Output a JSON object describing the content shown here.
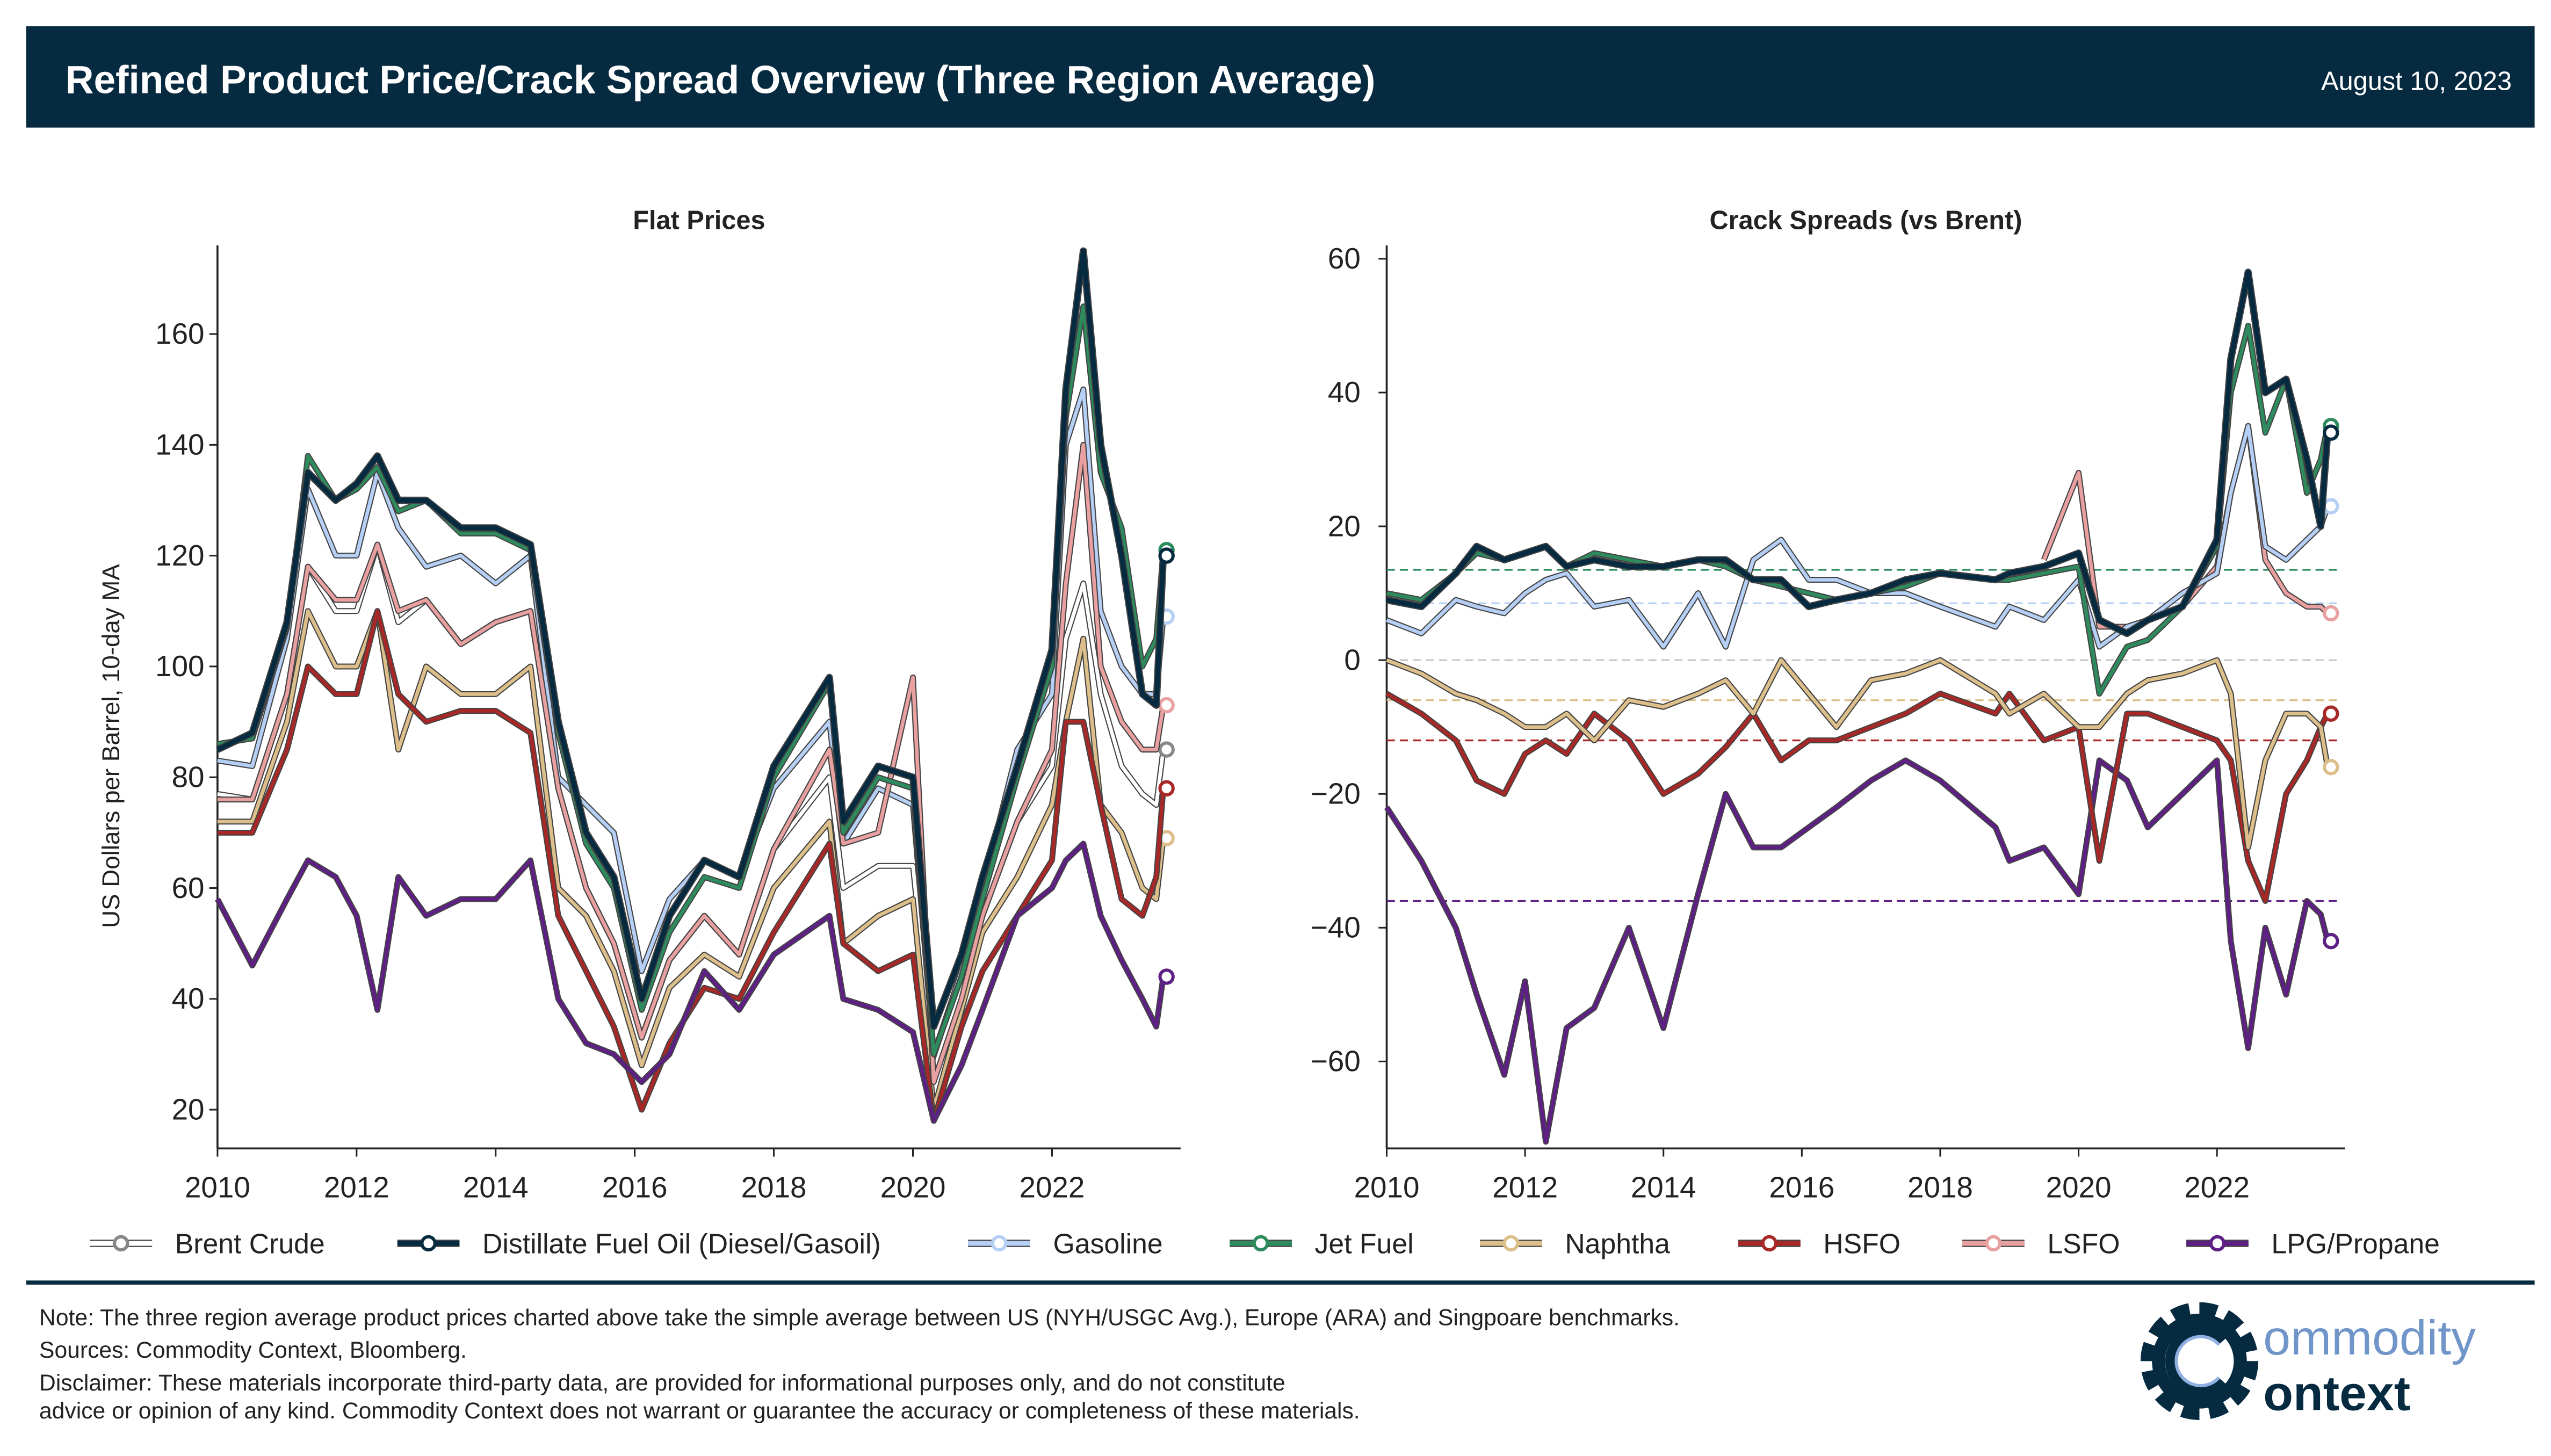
{
  "header": {
    "title": "Refined Product Price/Crack Spread Overview (Three Region Average)",
    "date": "August 10, 2023",
    "background": "#062a3f"
  },
  "legend": [
    {
      "name": "Brent Crude",
      "color": "#ffffff"
    },
    {
      "name": "Distillate Fuel Oil (Diesel/Gasoil)",
      "color": "#062a3f"
    },
    {
      "name": "Gasoline",
      "color": "#b5cff5"
    },
    {
      "name": "Jet Fuel",
      "color": "#2e8b5e"
    },
    {
      "name": "Naphtha",
      "color": "#dcbf8a"
    },
    {
      "name": "HSFO",
      "color": "#a82828"
    },
    {
      "name": "LSFO",
      "color": "#e8a0a0"
    },
    {
      "name": "LPG/Propane",
      "color": "#5e2084"
    }
  ],
  "footer": {
    "note": "Note: The three region average product prices charted above take the simple average between US (NYH/USGC Avg.), Europe (ARA) and Singpoare benchmarks.",
    "sources": "Sources: Commodity Context, Bloomberg.",
    "disclaimer1": "Disclaimer: These materials incorporate third-party data, are provided for informational purposes only, and do not constitute",
    "disclaimer2": "advice or opinion of any kind. Commodity Context does not warrant or guarantee the accuracy or completeness of these materials.",
    "logo_line1": "ommodity",
    "logo_line2": "ontext"
  },
  "chart_data": [
    {
      "type": "line",
      "title": "Flat Prices",
      "xlabel": "",
      "ylabel": "US Dollars per Barrel, 10-day MA",
      "xlim": [
        2010,
        2023.85
      ],
      "ylim": [
        13,
        176
      ],
      "xticks": [
        2010,
        2012,
        2014,
        2016,
        2018,
        2020,
        2022
      ],
      "yticks": [
        20,
        40,
        60,
        80,
        100,
        120,
        140,
        160
      ],
      "grid": false,
      "x": [
        2010.0,
        2010.5,
        2011.0,
        2011.3,
        2011.7,
        2012.0,
        2012.3,
        2012.6,
        2013.0,
        2013.5,
        2014.0,
        2014.5,
        2014.9,
        2015.3,
        2015.7,
        2016.1,
        2016.5,
        2017.0,
        2017.5,
        2018.0,
        2018.8,
        2019.0,
        2019.5,
        2020.0,
        2020.3,
        2020.7,
        2021.0,
        2021.5,
        2022.0,
        2022.2,
        2022.45,
        2022.7,
        2023.0,
        2023.3,
        2023.5,
        2023.6
      ],
      "series": [
        {
          "name": "Brent Crude",
          "values": [
            77,
            76,
            95,
            118,
            110,
            110,
            122,
            108,
            112,
            104,
            108,
            110,
            78,
            60,
            50,
            33,
            47,
            55,
            48,
            67,
            80,
            60,
            64,
            64,
            27,
            42,
            55,
            72,
            82,
            105,
            115,
            95,
            82,
            77,
            75,
            85
          ]
        },
        {
          "name": "Gasoline",
          "values": [
            83,
            82,
            105,
            132,
            120,
            120,
            135,
            125,
            118,
            120,
            115,
            120,
            80,
            75,
            70,
            45,
            58,
            65,
            62,
            78,
            90,
            68,
            78,
            75,
            30,
            45,
            60,
            85,
            95,
            140,
            150,
            110,
            100,
            95,
            95,
            109
          ]
        },
        {
          "name": "Naphtha",
          "values": [
            72,
            72,
            90,
            110,
            100,
            100,
            110,
            85,
            100,
            95,
            95,
            100,
            60,
            55,
            45,
            28,
            42,
            48,
            44,
            60,
            72,
            50,
            55,
            58,
            20,
            38,
            52,
            62,
            75,
            90,
            105,
            75,
            70,
            60,
            58,
            69
          ]
        },
        {
          "name": "HSFO",
          "values": [
            70,
            70,
            85,
            100,
            95,
            95,
            110,
            95,
            90,
            92,
            92,
            88,
            55,
            45,
            35,
            20,
            32,
            42,
            40,
            52,
            68,
            50,
            45,
            48,
            18,
            35,
            45,
            55,
            65,
            90,
            90,
            75,
            58,
            55,
            62,
            78
          ]
        },
        {
          "name": "LSFO",
          "values": [
            76,
            76,
            95,
            118,
            112,
            112,
            122,
            110,
            112,
            104,
            108,
            110,
            78,
            60,
            50,
            33,
            47,
            55,
            48,
            67,
            85,
            68,
            70,
            98,
            25,
            40,
            55,
            72,
            85,
            115,
            140,
            100,
            90,
            85,
            85,
            93
          ]
        },
        {
          "name": "LPG/Propane",
          "values": [
            58,
            46,
            58,
            65,
            62,
            55,
            38,
            62,
            55,
            58,
            58,
            65,
            40,
            32,
            30,
            25,
            30,
            45,
            38,
            48,
            55,
            40,
            38,
            34,
            18,
            28,
            38,
            55,
            60,
            65,
            68,
            55,
            47,
            40,
            35,
            44
          ]
        },
        {
          "name": "Jet Fuel",
          "values": [
            86,
            87,
            107,
            138,
            130,
            132,
            136,
            128,
            130,
            124,
            124,
            121,
            88,
            68,
            60,
            38,
            52,
            62,
            60,
            80,
            97,
            70,
            80,
            78,
            30,
            44,
            58,
            80,
            100,
            145,
            165,
            135,
            125,
            100,
            105,
            121
          ]
        },
        {
          "name": "Distillate Fuel Oil (Diesel/Gasoil)",
          "values": [
            85,
            88,
            108,
            135,
            130,
            133,
            138,
            130,
            130,
            125,
            125,
            122,
            90,
            70,
            62,
            40,
            55,
            65,
            62,
            82,
            98,
            72,
            82,
            80,
            35,
            48,
            62,
            82,
            103,
            150,
            175,
            140,
            120,
            95,
            93,
            120
          ]
        }
      ]
    },
    {
      "type": "line",
      "title": "Crack Spreads (vs Brent)",
      "xlabel": "",
      "ylabel": "",
      "xlim": [
        2010,
        2023.85
      ],
      "ylim": [
        -73,
        62
      ],
      "xticks": [
        2010,
        2012,
        2014,
        2016,
        2018,
        2020,
        2022
      ],
      "yticks": [
        -60,
        -40,
        -20,
        0,
        20,
        40,
        60
      ],
      "grid": false,
      "reference_lines": [
        {
          "value": 13.5,
          "color": "#2e8b5e"
        },
        {
          "value": 8.5,
          "color": "#b5cff5"
        },
        {
          "value": 0,
          "color": "#c8c8c8"
        },
        {
          "value": -6,
          "color": "#dcbf8a"
        },
        {
          "value": -12,
          "color": "#a82828"
        },
        {
          "value": -36,
          "color": "#5e2084"
        }
      ],
      "x": [
        2010.0,
        2010.5,
        2011.0,
        2011.3,
        2011.7,
        2012.0,
        2012.3,
        2012.6,
        2013.0,
        2013.5,
        2014.0,
        2014.5,
        2014.9,
        2015.3,
        2015.7,
        2016.1,
        2016.5,
        2017.0,
        2017.5,
        2018.0,
        2018.8,
        2019.0,
        2019.5,
        2020.0,
        2020.3,
        2020.7,
        2021.0,
        2021.5,
        2022.0,
        2022.2,
        2022.45,
        2022.7,
        2023.0,
        2023.3,
        2023.5,
        2023.6
      ],
      "series": [
        {
          "name": "LPG/Propane",
          "values": [
            -22,
            -30,
            -40,
            -50,
            -62,
            -48,
            -72,
            -55,
            -52,
            -40,
            -55,
            -35,
            -20,
            -28,
            -28,
            -25,
            -22,
            -18,
            -15,
            -18,
            -25,
            -30,
            -28,
            -35,
            -15,
            -18,
            -25,
            -20,
            -15,
            -42,
            -58,
            -40,
            -50,
            -36,
            -38,
            -42
          ]
        },
        {
          "name": "HSFO",
          "values": [
            -5,
            -8,
            -12,
            -18,
            -20,
            -14,
            -12,
            -14,
            -8,
            -12,
            -20,
            -17,
            -13,
            -8,
            -15,
            -12,
            -12,
            -10,
            -8,
            -5,
            -8,
            -5,
            -12,
            -10,
            -30,
            -8,
            -8,
            -10,
            -12,
            -15,
            -30,
            -36,
            -20,
            -15,
            -10,
            -8
          ]
        },
        {
          "name": "Naphtha",
          "values": [
            0,
            -2,
            -5,
            -6,
            -8,
            -10,
            -10,
            -8,
            -12,
            -6,
            -7,
            -5,
            -3,
            -8,
            0,
            -5,
            -10,
            -3,
            -2,
            0,
            -5,
            -8,
            -5,
            -10,
            -10,
            -5,
            -3,
            -2,
            0,
            -5,
            -28,
            -15,
            -8,
            -8,
            -10,
            -16
          ]
        },
        {
          "name": "LSFO",
          "values": [
            null,
            null,
            null,
            null,
            null,
            null,
            null,
            null,
            null,
            null,
            null,
            null,
            null,
            null,
            null,
            null,
            null,
            null,
            null,
            null,
            null,
            null,
            15,
            28,
            5,
            5,
            6,
            8,
            14,
            25,
            35,
            15,
            10,
            8,
            8,
            7
          ]
        },
        {
          "name": "Gasoline",
          "values": [
            6,
            4,
            9,
            8,
            7,
            10,
            12,
            13,
            8,
            9,
            2,
            10,
            2,
            15,
            18,
            12,
            12,
            10,
            10,
            8,
            5,
            8,
            6,
            12,
            2,
            5,
            6,
            10,
            13,
            25,
            35,
            17,
            15,
            18,
            20,
            23
          ]
        },
        {
          "name": "Jet Fuel",
          "values": [
            10,
            9,
            13,
            16,
            15,
            16,
            17,
            14,
            16,
            15,
            14,
            15,
            14,
            12,
            11,
            10,
            9,
            10,
            11,
            13,
            12,
            12,
            13,
            14,
            -5,
            2,
            3,
            8,
            17,
            40,
            50,
            34,
            42,
            25,
            30,
            35
          ]
        },
        {
          "name": "Distillate Fuel Oil (Diesel/Gasoil)",
          "values": [
            9,
            8,
            13,
            17,
            15,
            16,
            17,
            14,
            15,
            14,
            14,
            15,
            15,
            12,
            12,
            8,
            9,
            10,
            12,
            13,
            12,
            13,
            14,
            16,
            6,
            4,
            6,
            8,
            18,
            45,
            58,
            40,
            42,
            30,
            20,
            34
          ]
        }
      ]
    }
  ]
}
